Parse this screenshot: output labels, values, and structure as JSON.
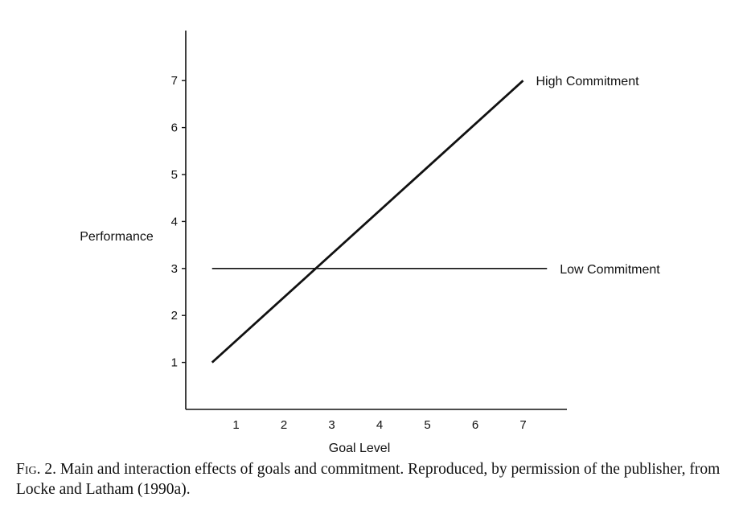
{
  "chart_data": {
    "type": "line",
    "xlabel": "Goal Level",
    "ylabel": "Performance",
    "x_ticks": [
      "1",
      "2",
      "3",
      "4",
      "5",
      "6",
      "7"
    ],
    "y_ticks": [
      "1",
      "2",
      "3",
      "4",
      "5",
      "6",
      "7"
    ],
    "xlim": [
      0,
      8
    ],
    "ylim": [
      0,
      8
    ],
    "grid": false,
    "series": [
      {
        "name": "High Commitment",
        "x": [
          0.5,
          7
        ],
        "y": [
          1,
          7
        ]
      },
      {
        "name": "Low Commitment",
        "x": [
          0.5,
          7.5
        ],
        "y": [
          3,
          3
        ]
      }
    ]
  },
  "caption": {
    "label": "Fig. 2.",
    "text": "Main and interaction effects of goals and commitment. Reproduced, by permission of the publisher, from Locke and Latham (1990a)."
  }
}
